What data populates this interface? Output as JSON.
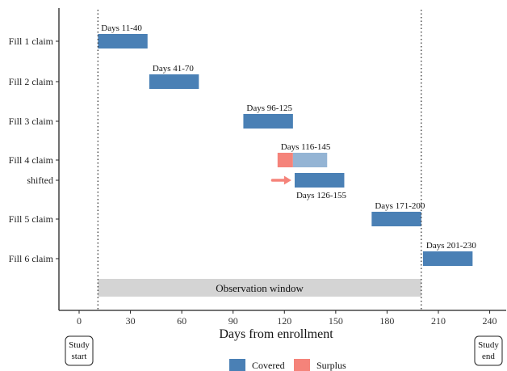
{
  "chart_data": {
    "type": "gantt",
    "xlabel": "Days from enrollment",
    "xlim": [
      -12,
      250
    ],
    "x_ticks": [
      0,
      30,
      60,
      90,
      120,
      150,
      180,
      210,
      240
    ],
    "rows": [
      {
        "label": "Fill 1 claim"
      },
      {
        "label": "Fill 2 claim"
      },
      {
        "label": "Fill 3 claim"
      },
      {
        "label": "Fill 4 claim"
      },
      {
        "label": "shifted"
      },
      {
        "label": "Fill 5 claim"
      },
      {
        "label": "Fill 6 claim"
      }
    ],
    "segments": [
      {
        "row": 0,
        "start": 11,
        "end": 40,
        "type": "covered",
        "label": "Days 11-40",
        "label_pos": "above"
      },
      {
        "row": 1,
        "start": 41,
        "end": 70,
        "type": "covered",
        "label": "Days 41-70",
        "label_pos": "above"
      },
      {
        "row": 2,
        "start": 96,
        "end": 125,
        "type": "covered",
        "label": "Days 96-125",
        "label_pos": "above"
      },
      {
        "row": 3,
        "start": 116,
        "end": 125,
        "type": "surplus",
        "label": "",
        "label_pos": "above"
      },
      {
        "row": 3,
        "start": 125,
        "end": 145,
        "type": "covered_faded",
        "label": "Days 116-145",
        "label_pos": "above"
      },
      {
        "row": 4,
        "start": 126,
        "end": 155,
        "type": "covered",
        "label": "Days 126-155",
        "label_pos": "below"
      },
      {
        "row": 5,
        "start": 171,
        "end": 200,
        "type": "covered",
        "label": "Days 171-200",
        "label_pos": "above"
      },
      {
        "row": 6,
        "start": 201,
        "end": 230,
        "type": "covered",
        "label": "Days 201-230",
        "label_pos": "above"
      }
    ],
    "shift_arrow": {
      "row": 4,
      "from": 113,
      "to": 125
    },
    "observation_window": {
      "start": 11,
      "end": 200,
      "label": "Observation window"
    },
    "reference_lines": [
      11,
      200
    ],
    "study_markers": [
      {
        "x": 0,
        "label_lines": [
          "Study",
          "start"
        ]
      },
      {
        "x": 240,
        "label_lines": [
          "Study",
          "end"
        ]
      }
    ],
    "legend": [
      {
        "key": "covered",
        "label": "Covered"
      },
      {
        "key": "surplus",
        "label": "Surplus"
      }
    ],
    "legend_placement": "bottom",
    "grid": false,
    "colors": {
      "covered": "#4a80b5",
      "covered_faded": "#94b4d4",
      "surplus": "#f5837a",
      "surplus_faded": "#f7aaa4",
      "window": "#d4d4d4",
      "axis": "#222222",
      "text": "#111111"
    }
  }
}
